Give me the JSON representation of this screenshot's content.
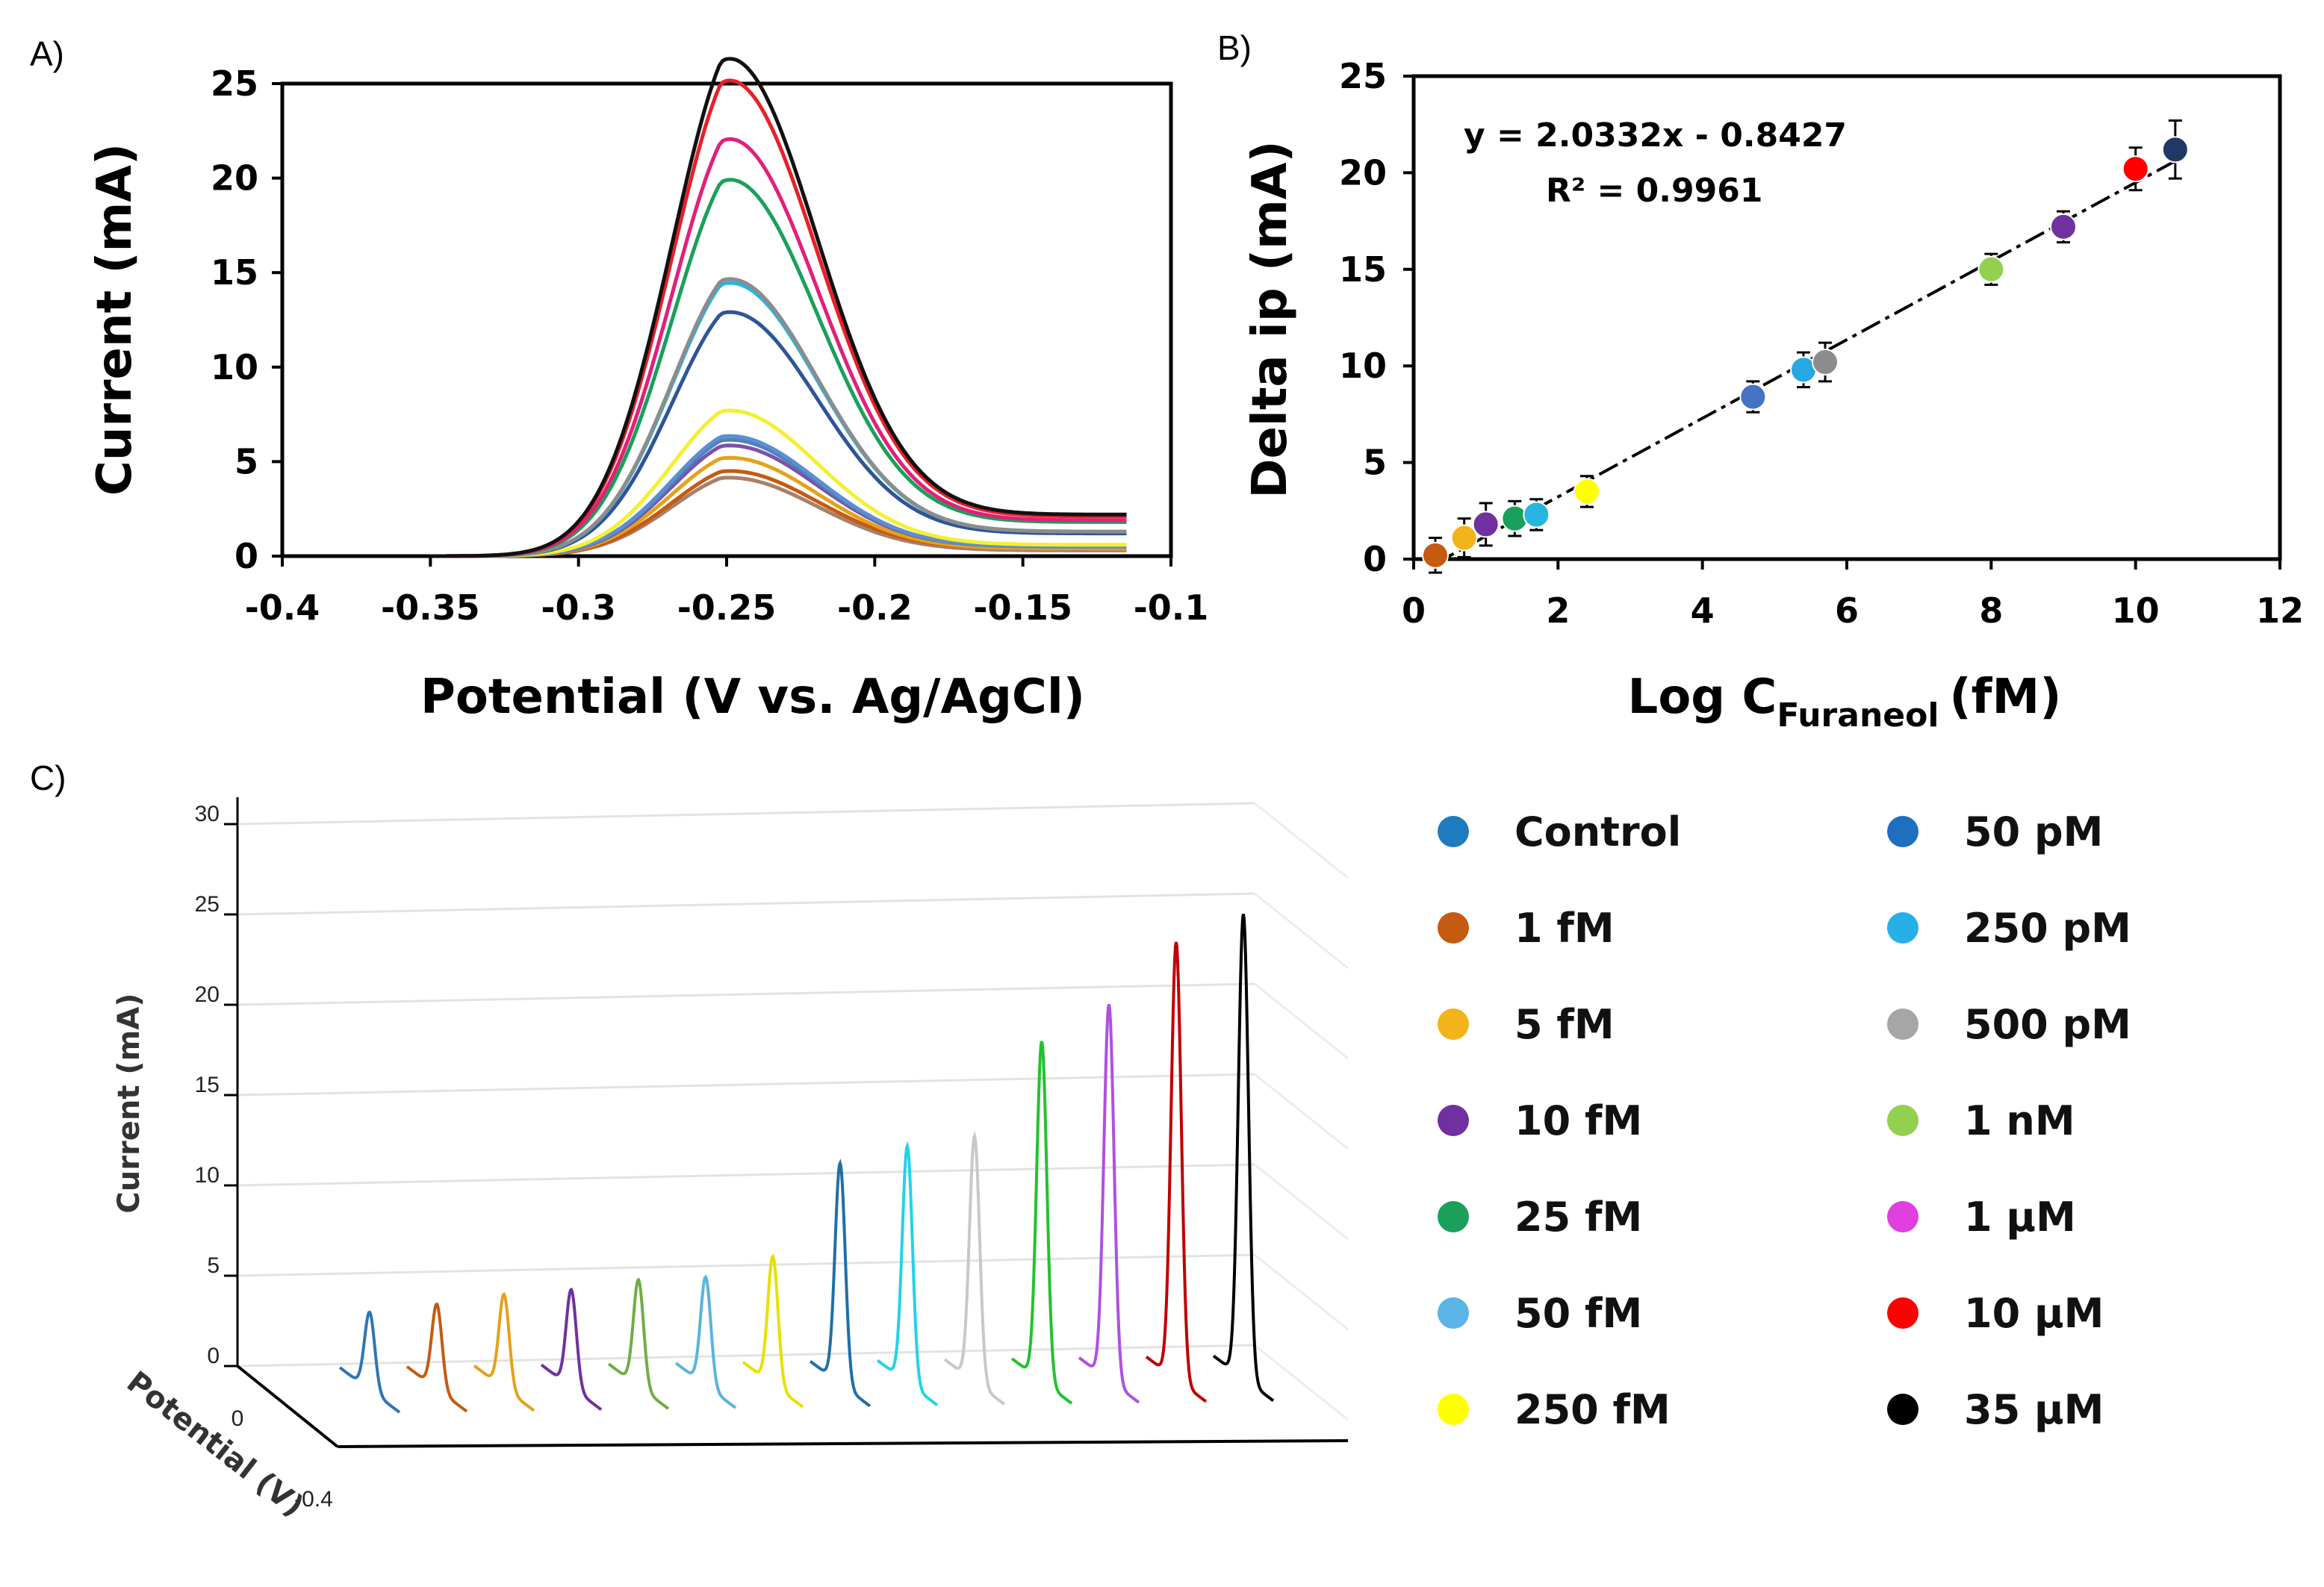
{
  "panels": {
    "a": "A)",
    "b": "B)",
    "c": "C)"
  },
  "chart_data": [
    {
      "id": "A",
      "type": "line",
      "title": "",
      "xlabel": "Potential (V vs. Ag/AgCl)",
      "ylabel": "Current (mA)",
      "xlim": [
        -0.4,
        -0.1
      ],
      "ylim": [
        0,
        25
      ],
      "xticks": [
        -0.4,
        -0.35,
        -0.3,
        -0.25,
        -0.2,
        -0.15,
        -0.1
      ],
      "xtick_labels": [
        "-0.4",
        "-0.35",
        "-0.3",
        "-0.25",
        "-0.2",
        "-0.15",
        "-0.1"
      ],
      "yticks": [
        0,
        5,
        10,
        15,
        20,
        25
      ],
      "ytick_labels": [
        "0",
        "5",
        "10",
        "15",
        "20",
        "25"
      ],
      "x_range": [
        -0.35,
        -0.115
      ],
      "peak_potential": -0.25,
      "series": [
        {
          "name": "35 µM",
          "color": "#111111",
          "peak": 25.2,
          "tail": 2.2
        },
        {
          "name": "10 µM",
          "color": "#e8202a",
          "peak": 24.1,
          "tail": 2.1
        },
        {
          "name": "1 µM",
          "color": "#e0217a",
          "peak": 21.1,
          "tail": 1.9
        },
        {
          "name": "1 nM",
          "color": "#1aa05a",
          "peak": 19.0,
          "tail": 1.8
        },
        {
          "name": "500 pM",
          "color": "#8c8c8c",
          "peak": 14.0,
          "tail": 1.3
        },
        {
          "name": "250 pM",
          "color": "#27b5e0",
          "peak": 13.8,
          "tail": 1.3
        },
        {
          "name": "50 pM",
          "color": "#2f5597",
          "peak": 12.3,
          "tail": 1.2
        },
        {
          "name": "250 fM",
          "color": "#f3f032",
          "peak": 7.4,
          "tail": 0.6
        },
        {
          "name": "50 fM",
          "color": "#5b8fd0",
          "peak": 6.1,
          "tail": 0.5
        },
        {
          "name": "25 fM",
          "color": "#4f81bd",
          "peak": 5.9,
          "tail": 0.5
        },
        {
          "name": "10 fM",
          "color": "#7a53a8",
          "peak": 5.6,
          "tail": 0.5
        },
        {
          "name": "5 fM",
          "color": "#e3a21a",
          "peak": 5.0,
          "tail": 0.4
        },
        {
          "name": "1 fM",
          "color": "#c55a11",
          "peak": 4.3,
          "tail": 0.4
        },
        {
          "name": "Control",
          "color": "#a9806a",
          "peak": 4.0,
          "tail": 0.3
        }
      ]
    },
    {
      "id": "B",
      "type": "scatter",
      "xlabel_main": "Log C",
      "xlabel_sub": "Furaneol",
      "xlabel_unit": "(fM)",
      "ylabel": "Delta ip (mA)",
      "xlim": [
        0,
        12
      ],
      "ylim": [
        0,
        25
      ],
      "xticks": [
        0,
        2,
        4,
        6,
        8,
        10,
        12
      ],
      "xtick_labels": [
        "0",
        "2",
        "4",
        "6",
        "8",
        "10",
        "12"
      ],
      "yticks": [
        0,
        5,
        10,
        15,
        20,
        25
      ],
      "ytick_labels": [
        "0",
        "5",
        "10",
        "15",
        "20",
        "25"
      ],
      "equation": "y = 2.0332x - 0.8427",
      "r_squared": "R² = 0.9961",
      "fit": {
        "slope": 2.0332,
        "intercept": -0.8427,
        "x_range": [
          0.3,
          10.55
        ]
      },
      "points": [
        {
          "x": 0.3,
          "y": 0.2,
          "err": 0.9,
          "color": "#c55a11"
        },
        {
          "x": 0.7,
          "y": 1.1,
          "err": 1.0,
          "color": "#f3b31a"
        },
        {
          "x": 1.0,
          "y": 1.8,
          "err": 1.1,
          "color": "#7030a0"
        },
        {
          "x": 1.4,
          "y": 2.1,
          "err": 0.9,
          "color": "#1aa05a"
        },
        {
          "x": 1.7,
          "y": 2.3,
          "err": 0.8,
          "color": "#27b5e0"
        },
        {
          "x": 2.4,
          "y": 3.5,
          "err": 0.8,
          "color": "#ffff00"
        },
        {
          "x": 4.7,
          "y": 8.4,
          "err": 0.8,
          "color": "#4472c4"
        },
        {
          "x": 5.4,
          "y": 9.8,
          "err": 0.9,
          "color": "#27a8e0"
        },
        {
          "x": 5.7,
          "y": 10.2,
          "err": 1.0,
          "color": "#8c8c8c"
        },
        {
          "x": 8.0,
          "y": 15.0,
          "err": 0.8,
          "color": "#92d050"
        },
        {
          "x": 9.0,
          "y": 17.2,
          "err": 0.8,
          "color": "#7030a0"
        },
        {
          "x": 10.0,
          "y": 20.2,
          "err": 1.1,
          "color": "#ff0000"
        },
        {
          "x": 10.55,
          "y": 21.2,
          "err": 1.5,
          "color": "#1f3864"
        }
      ]
    },
    {
      "id": "C",
      "type": "line",
      "title": "",
      "ylabel": "Current (mA)",
      "xlabel": "Potential (V)",
      "zlim": [
        0,
        30
      ],
      "zticks": [
        "0",
        "5",
        "10",
        "15",
        "20",
        "25",
        "30"
      ],
      "potential_ticks": [
        "0",
        "-0.4"
      ],
      "series": [
        {
          "name": "Control",
          "color": "#2e75b6",
          "peak": 4.3
        },
        {
          "name": "1 fM",
          "color": "#c55a11",
          "peak": 4.7
        },
        {
          "name": "5 fM",
          "color": "#e3a21a",
          "peak": 5.2
        },
        {
          "name": "10 fM",
          "color": "#7030a0",
          "peak": 5.4
        },
        {
          "name": "25 fM",
          "color": "#70ad47",
          "peak": 5.9
        },
        {
          "name": "50 fM",
          "color": "#5ab4dc",
          "peak": 6.0
        },
        {
          "name": "250 fM",
          "color": "#e8e000",
          "peak": 7.1
        },
        {
          "name": "50 pM",
          "color": "#1f6fa8",
          "peak": 12.2
        },
        {
          "name": "250 pM",
          "color": "#22d3e8",
          "peak": 13.1
        },
        {
          "name": "500 pM",
          "color": "#c8c8c8",
          "peak": 13.6
        },
        {
          "name": "1 nM",
          "color": "#22c22e",
          "peak": 18.8
        },
        {
          "name": "1 µM",
          "color": "#b050e0",
          "peak": 20.8
        },
        {
          "name": "10 µM",
          "color": "#c00000",
          "peak": 24.2
        },
        {
          "name": "35 µM",
          "color": "#000000",
          "peak": 25.7
        }
      ]
    }
  ],
  "legend": [
    {
      "label": "Control",
      "color": "#1f7bbf"
    },
    {
      "label": "1 fM",
      "color": "#c55a11"
    },
    {
      "label": "5 fM",
      "color": "#f3b31a"
    },
    {
      "label": "10 fM",
      "color": "#7030a0"
    },
    {
      "label": "25 fM",
      "color": "#1aa05a"
    },
    {
      "label": "50 fM",
      "color": "#5ab4e6"
    },
    {
      "label": "250 fM",
      "color": "#ffff00"
    },
    {
      "label": "50 pM",
      "color": "#1f6fbf"
    },
    {
      "label": "250 pM",
      "color": "#27b0e8"
    },
    {
      "label": "500 pM",
      "color": "#a6a6a6"
    },
    {
      "label": "1 nM",
      "color": "#92d050"
    },
    {
      "label": "1 µM",
      "color": "#e040e0"
    },
    {
      "label": "10 µM",
      "color": "#ff0000"
    },
    {
      "label": "35 µM",
      "color": "#000000"
    }
  ]
}
